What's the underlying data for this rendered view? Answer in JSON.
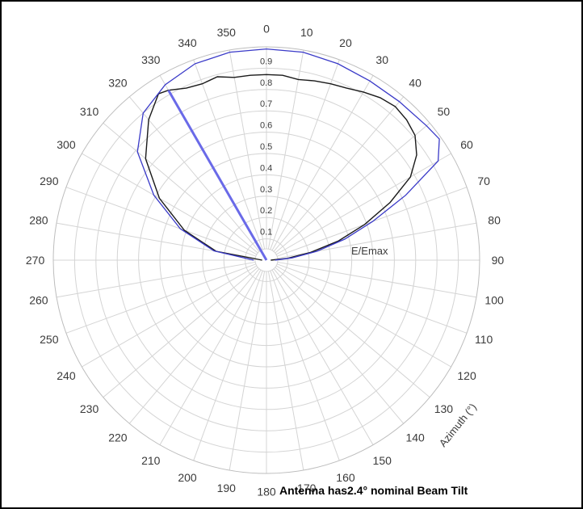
{
  "chart_data": {
    "type": "polar",
    "caption": "Antenna has2.4° nominal Beam Tilt",
    "radial_label": "E/Emax",
    "angular_label": "Azimuth (°)",
    "radial_ticks": [
      "0.1",
      "0.2",
      "0.3",
      "0.4",
      "0.5",
      "0.6",
      "0.7",
      "0.8",
      "0.9"
    ],
    "radial_tick_values": [
      0.1,
      0.2,
      0.3,
      0.4,
      0.5,
      0.6,
      0.7,
      0.8,
      0.9
    ],
    "angle_ticks": [
      "0",
      "10",
      "20",
      "30",
      "40",
      "50",
      "60",
      "70",
      "80",
      "90",
      "100",
      "110",
      "120",
      "130",
      "140",
      "150",
      "160",
      "170",
      "180",
      "190",
      "200",
      "210",
      "220",
      "230",
      "240",
      "250",
      "260",
      "270",
      "280",
      "290",
      "300",
      "310",
      "320",
      "330",
      "340",
      "350"
    ],
    "rlim": [
      0,
      1
    ],
    "grid": true,
    "colors": {
      "pattern": "#1a1a1a",
      "envelope": "#3a3ac8",
      "tilt_line": "#6a6ae8",
      "grid": "#d4d4d4"
    },
    "tilt_line_azimuth": 330,
    "series": [
      {
        "role": "pattern",
        "points": [
          [
            270,
            0.02
          ],
          [
            280,
            0.24
          ],
          [
            290,
            0.41
          ],
          [
            300,
            0.58
          ],
          [
            310,
            0.74
          ],
          [
            320,
            0.86
          ],
          [
            327,
            0.93
          ],
          [
            330,
            0.92
          ],
          [
            335,
            0.89
          ],
          [
            340,
            0.88
          ],
          [
            345,
            0.89
          ],
          [
            350,
            0.87
          ],
          [
            355,
            0.87
          ],
          [
            0,
            0.87
          ],
          [
            5,
            0.87
          ],
          [
            10,
            0.86
          ],
          [
            15,
            0.87
          ],
          [
            20,
            0.88
          ],
          [
            25,
            0.89
          ],
          [
            30,
            0.91
          ],
          [
            35,
            0.93
          ],
          [
            40,
            0.94
          ],
          [
            45,
            0.93
          ],
          [
            50,
            0.91
          ],
          [
            55,
            0.86
          ],
          [
            60,
            0.78
          ],
          [
            65,
            0.64
          ],
          [
            70,
            0.49
          ],
          [
            75,
            0.35
          ],
          [
            80,
            0.21
          ],
          [
            85,
            0.1
          ],
          [
            90,
            0.02
          ]
        ]
      },
      {
        "role": "envelope",
        "points": [
          [
            270,
            0.06
          ],
          [
            280,
            0.25
          ],
          [
            290,
            0.43
          ],
          [
            300,
            0.61
          ],
          [
            310,
            0.79
          ],
          [
            320,
            0.9
          ],
          [
            330,
            0.95
          ],
          [
            340,
            0.98
          ],
          [
            350,
            0.99
          ],
          [
            0,
            0.99
          ],
          [
            10,
            0.99
          ],
          [
            20,
            0.98
          ],
          [
            30,
            0.97
          ],
          [
            40,
            0.97
          ],
          [
            50,
            0.98
          ],
          [
            55,
            0.99
          ],
          [
            60,
            0.93
          ],
          [
            65,
            0.72
          ],
          [
            70,
            0.53
          ],
          [
            75,
            0.38
          ],
          [
            80,
            0.24
          ],
          [
            85,
            0.12
          ],
          [
            90,
            0.04
          ]
        ]
      }
    ]
  }
}
